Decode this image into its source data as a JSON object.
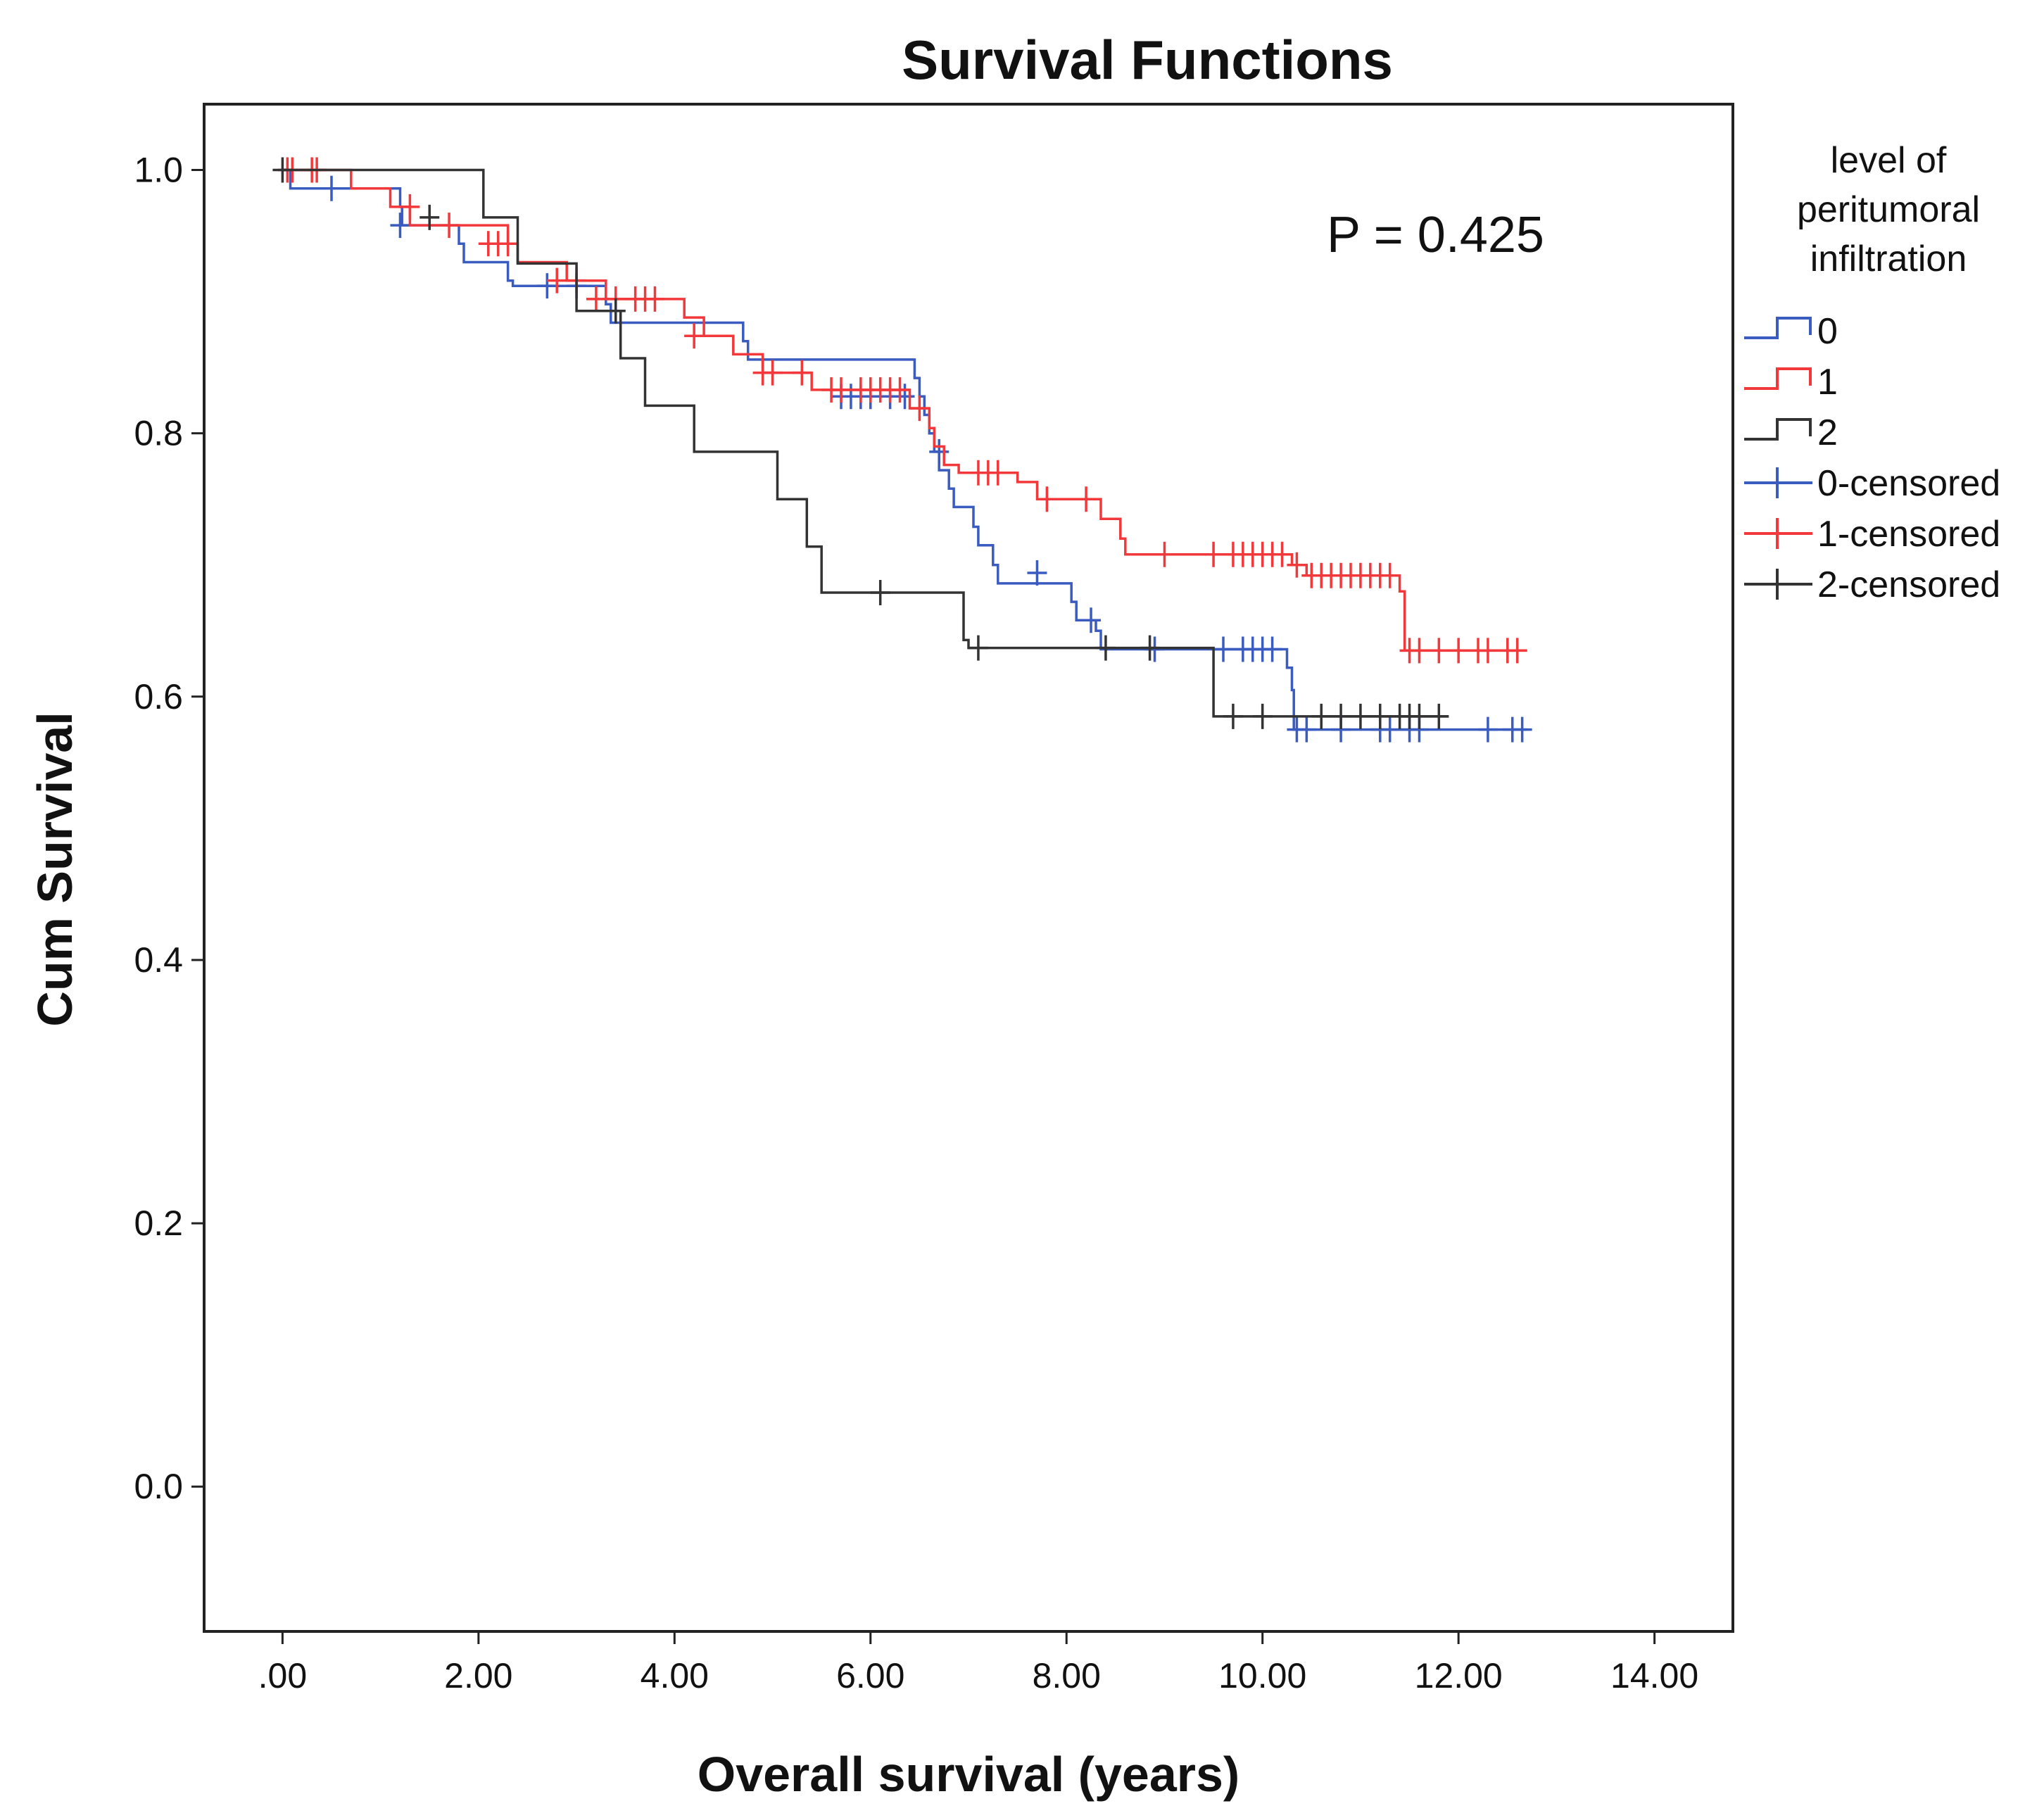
{
  "chart_data": {
    "type": "line",
    "step": true,
    "title": "Survival Functions",
    "xlabel": "Overall survival (years)",
    "ylabel": "Cum Survival",
    "xlim": [
      -0.8,
      14.8
    ],
    "ylim": [
      -0.11,
      1.05
    ],
    "x_ticks": [
      0,
      2,
      4,
      6,
      8,
      10,
      12,
      14
    ],
    "x_tick_labels": [
      ".00",
      "2.00",
      "4.00",
      "6.00",
      "8.00",
      "10.00",
      "12.00",
      "14.00"
    ],
    "y_ticks": [
      0,
      0.2,
      0.4,
      0.6,
      0.8,
      1.0
    ],
    "y_tick_labels": [
      "0.0",
      "0.2",
      "0.4",
      "0.6",
      "0.8",
      "1.0"
    ],
    "grid": false,
    "annotation": "P = 0.425",
    "legend": {
      "title": [
        "level of",
        "peritumoral",
        "infiltration"
      ],
      "placement": "right",
      "entries": [
        {
          "label": "0",
          "color": "#3a5bbf",
          "kind": "step"
        },
        {
          "label": "1",
          "color": "#f2383a",
          "kind": "step"
        },
        {
          "label": "2",
          "color": "#333333",
          "kind": "step"
        },
        {
          "label": "0-censored",
          "color": "#3a5bbf",
          "kind": "censor"
        },
        {
          "label": "1-censored",
          "color": "#f2383a",
          "kind": "censor"
        },
        {
          "label": "2-censored",
          "color": "#333333",
          "kind": "censor"
        }
      ]
    },
    "series": [
      {
        "name": "0",
        "color": "#3a5bbf",
        "points": [
          [
            0,
            1.0
          ],
          [
            0.08,
            0.986
          ],
          [
            1.2,
            0.972
          ],
          [
            1.22,
            0.958
          ],
          [
            1.8,
            0.944
          ],
          [
            1.85,
            0.93
          ],
          [
            2.3,
            0.916
          ],
          [
            2.35,
            0.912
          ],
          [
            3.3,
            0.898
          ],
          [
            3.35,
            0.884
          ],
          [
            4.7,
            0.87
          ],
          [
            4.75,
            0.856
          ],
          [
            6.45,
            0.842
          ],
          [
            6.5,
            0.828
          ],
          [
            6.55,
            0.814
          ],
          [
            6.6,
            0.8
          ],
          [
            6.65,
            0.786
          ],
          [
            6.7,
            0.772
          ],
          [
            6.8,
            0.758
          ],
          [
            6.85,
            0.744
          ],
          [
            7.05,
            0.729
          ],
          [
            7.1,
            0.715
          ],
          [
            7.25,
            0.7
          ],
          [
            7.3,
            0.686
          ],
          [
            8.05,
            0.672
          ],
          [
            8.1,
            0.658
          ],
          [
            8.3,
            0.65
          ],
          [
            8.35,
            0.636
          ],
          [
            10.25,
            0.622
          ],
          [
            10.3,
            0.605
          ],
          [
            10.32,
            0.575
          ],
          [
            12.7,
            0.575
          ]
        ],
        "censored": [
          [
            0.5,
            0.986
          ],
          [
            1.2,
            0.958
          ],
          [
            2.7,
            0.912
          ],
          [
            3.0,
            0.912
          ],
          [
            5.7,
            0.828
          ],
          [
            5.8,
            0.828
          ],
          [
            5.9,
            0.828
          ],
          [
            6.0,
            0.828
          ],
          [
            6.2,
            0.828
          ],
          [
            6.35,
            0.828
          ],
          [
            6.7,
            0.786
          ],
          [
            7.7,
            0.694
          ],
          [
            8.25,
            0.658
          ],
          [
            8.9,
            0.636
          ],
          [
            9.6,
            0.636
          ],
          [
            9.8,
            0.636
          ],
          [
            9.9,
            0.636
          ],
          [
            10.0,
            0.636
          ],
          [
            10.1,
            0.636
          ],
          [
            10.35,
            0.575
          ],
          [
            10.45,
            0.575
          ],
          [
            10.8,
            0.575
          ],
          [
            11.2,
            0.575
          ],
          [
            11.3,
            0.575
          ],
          [
            11.5,
            0.575
          ],
          [
            11.6,
            0.575
          ],
          [
            12.3,
            0.575
          ],
          [
            12.55,
            0.575
          ],
          [
            12.65,
            0.575
          ]
        ]
      },
      {
        "name": "1",
        "color": "#f2383a",
        "points": [
          [
            0,
            1.0
          ],
          [
            0.7,
            0.986
          ],
          [
            1.1,
            0.972
          ],
          [
            1.3,
            0.958
          ],
          [
            2.3,
            0.944
          ],
          [
            2.4,
            0.93
          ],
          [
            2.9,
            0.916
          ],
          [
            3.3,
            0.902
          ],
          [
            4.1,
            0.888
          ],
          [
            4.3,
            0.874
          ],
          [
            4.6,
            0.86
          ],
          [
            4.9,
            0.846
          ],
          [
            5.4,
            0.833
          ],
          [
            6.4,
            0.819
          ],
          [
            6.6,
            0.804
          ],
          [
            6.65,
            0.79
          ],
          [
            6.75,
            0.776
          ],
          [
            6.9,
            0.77
          ],
          [
            7.5,
            0.763
          ],
          [
            7.7,
            0.75
          ],
          [
            8.35,
            0.735
          ],
          [
            8.55,
            0.72
          ],
          [
            8.6,
            0.708
          ],
          [
            10.3,
            0.7
          ],
          [
            10.45,
            0.692
          ],
          [
            11.4,
            0.68
          ],
          [
            11.45,
            0.635
          ],
          [
            12.7,
            0.635
          ]
        ],
        "censored": [
          [
            0.05,
            1.0
          ],
          [
            0.1,
            1.0
          ],
          [
            0.3,
            1.0
          ],
          [
            0.35,
            1.0
          ],
          [
            1.3,
            0.972
          ],
          [
            1.7,
            0.958
          ],
          [
            2.1,
            0.944
          ],
          [
            2.2,
            0.944
          ],
          [
            2.3,
            0.944
          ],
          [
            2.8,
            0.916
          ],
          [
            3.0,
            0.916
          ],
          [
            3.2,
            0.902
          ],
          [
            3.4,
            0.902
          ],
          [
            3.6,
            0.902
          ],
          [
            3.7,
            0.902
          ],
          [
            3.8,
            0.902
          ],
          [
            4.2,
            0.874
          ],
          [
            4.9,
            0.846
          ],
          [
            5.0,
            0.846
          ],
          [
            5.3,
            0.846
          ],
          [
            5.6,
            0.833
          ],
          [
            5.7,
            0.833
          ],
          [
            5.9,
            0.833
          ],
          [
            6.0,
            0.833
          ],
          [
            6.1,
            0.833
          ],
          [
            6.2,
            0.833
          ],
          [
            6.3,
            0.833
          ],
          [
            6.5,
            0.819
          ],
          [
            7.1,
            0.77
          ],
          [
            7.2,
            0.77
          ],
          [
            7.3,
            0.77
          ],
          [
            7.8,
            0.75
          ],
          [
            8.2,
            0.75
          ],
          [
            9.0,
            0.708
          ],
          [
            9.5,
            0.708
          ],
          [
            9.7,
            0.708
          ],
          [
            9.8,
            0.708
          ],
          [
            9.9,
            0.708
          ],
          [
            10.0,
            0.708
          ],
          [
            10.1,
            0.708
          ],
          [
            10.2,
            0.708
          ],
          [
            10.35,
            0.7
          ],
          [
            10.5,
            0.692
          ],
          [
            10.6,
            0.692
          ],
          [
            10.7,
            0.692
          ],
          [
            10.8,
            0.692
          ],
          [
            10.9,
            0.692
          ],
          [
            11.0,
            0.692
          ],
          [
            11.1,
            0.692
          ],
          [
            11.2,
            0.692
          ],
          [
            11.3,
            0.692
          ],
          [
            11.5,
            0.635
          ],
          [
            11.6,
            0.635
          ],
          [
            11.8,
            0.635
          ],
          [
            12.0,
            0.635
          ],
          [
            12.2,
            0.635
          ],
          [
            12.3,
            0.635
          ],
          [
            12.5,
            0.635
          ],
          [
            12.6,
            0.635
          ]
        ]
      },
      {
        "name": "2",
        "color": "#333333",
        "points": [
          [
            0,
            1.0
          ],
          [
            2.05,
            0.964
          ],
          [
            2.4,
            0.929
          ],
          [
            3.0,
            0.893
          ],
          [
            3.45,
            0.857
          ],
          [
            3.7,
            0.821
          ],
          [
            4.2,
            0.786
          ],
          [
            5.05,
            0.75
          ],
          [
            5.35,
            0.714
          ],
          [
            5.5,
            0.679
          ],
          [
            6.95,
            0.643
          ],
          [
            7.0,
            0.637
          ],
          [
            9.5,
            0.585
          ],
          [
            11.9,
            0.585
          ]
        ],
        "censored": [
          [
            0.0,
            1.0
          ],
          [
            1.5,
            0.964
          ],
          [
            3.4,
            0.893
          ],
          [
            6.1,
            0.679
          ],
          [
            7.1,
            0.637
          ],
          [
            8.4,
            0.637
          ],
          [
            8.85,
            0.637
          ],
          [
            9.7,
            0.585
          ],
          [
            10.0,
            0.585
          ],
          [
            10.6,
            0.585
          ],
          [
            10.8,
            0.585
          ],
          [
            11.0,
            0.585
          ],
          [
            11.2,
            0.585
          ],
          [
            11.4,
            0.585
          ],
          [
            11.5,
            0.585
          ],
          [
            11.6,
            0.585
          ],
          [
            11.8,
            0.585
          ]
        ]
      }
    ]
  }
}
